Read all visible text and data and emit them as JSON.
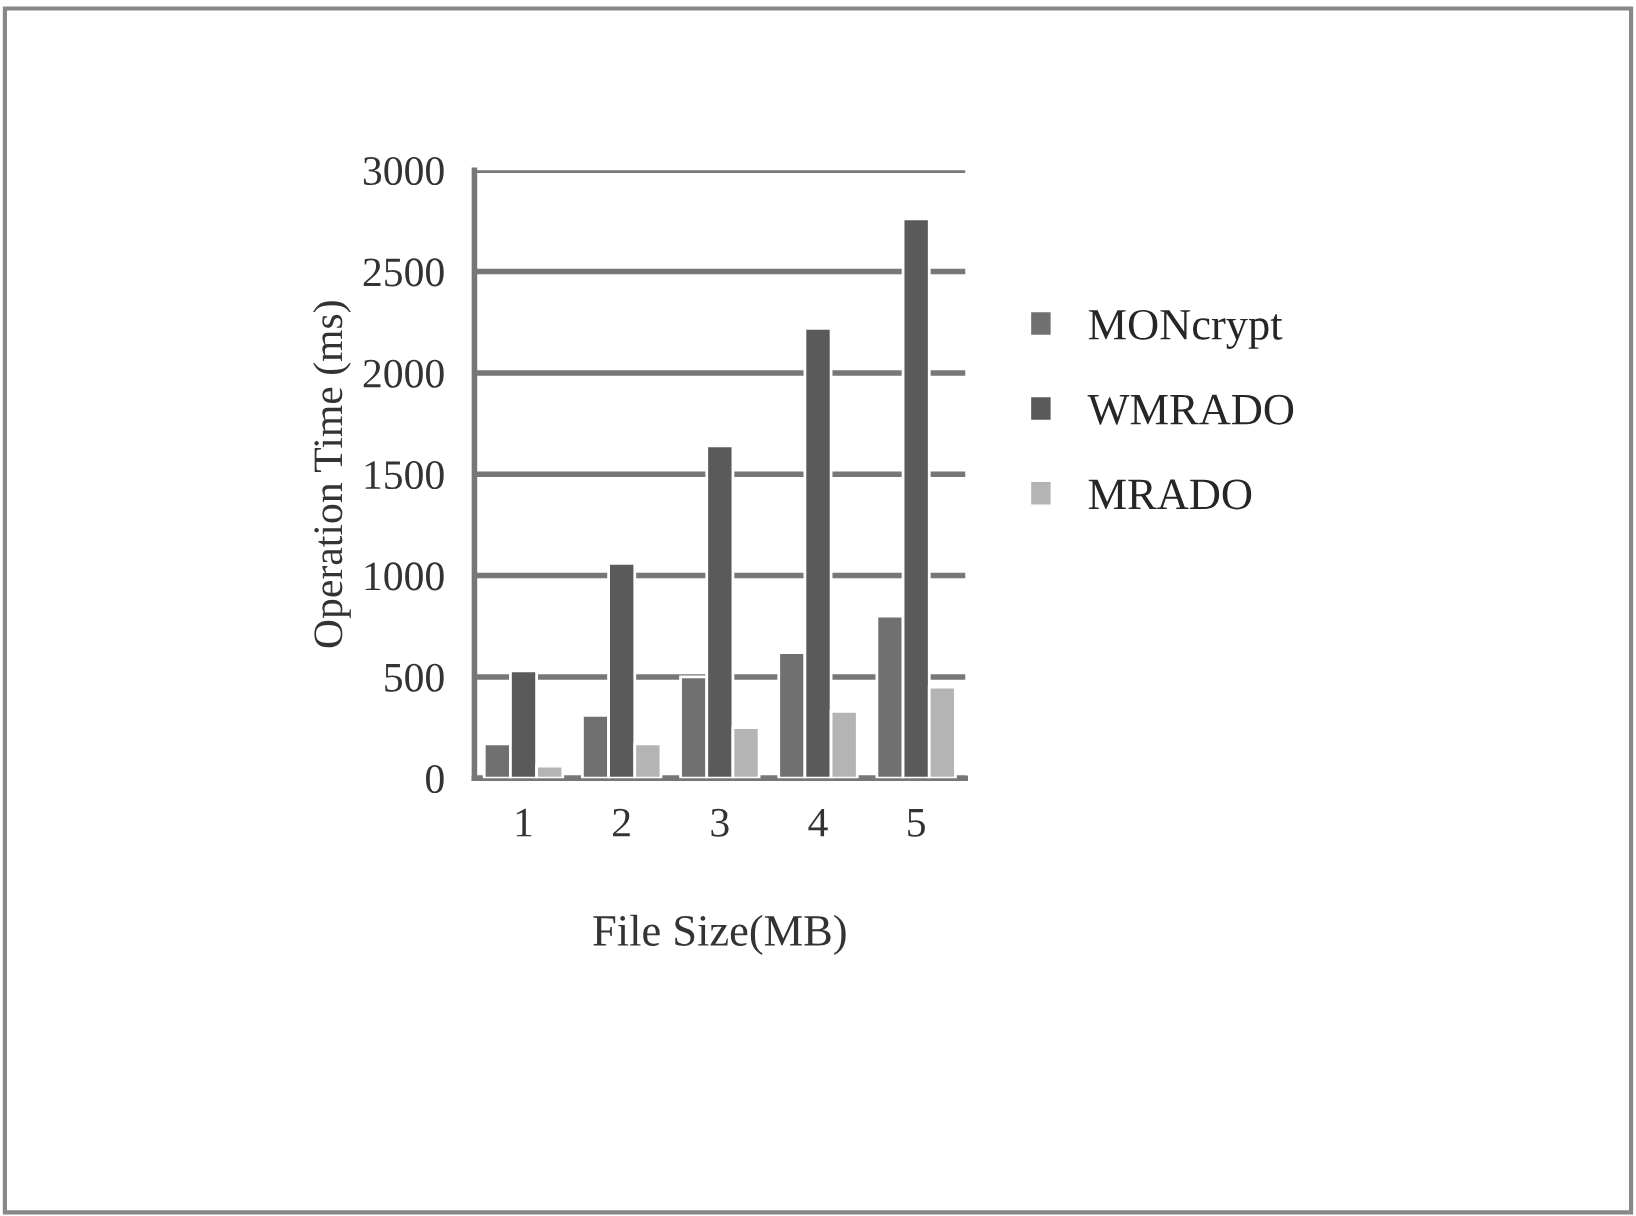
{
  "chart_data": {
    "type": "bar",
    "xlabel": "File Size(MB)",
    "ylabel": "Operation Time (ms)",
    "categories": [
      "1",
      "2",
      "3",
      "4",
      "5"
    ],
    "series": [
      {
        "name": "MONcrypt",
        "color": "#707070",
        "values": [
          170,
          310,
          500,
          620,
          800
        ]
      },
      {
        "name": "WMRADO",
        "color": "#5a5a5a",
        "values": [
          530,
          1060,
          1640,
          2220,
          2760
        ]
      },
      {
        "name": "MRADO",
        "color": "#b4b4b4",
        "values": [
          60,
          170,
          250,
          330,
          450
        ]
      }
    ],
    "ylim": [
      0,
      3000
    ],
    "yticks": [
      0,
      500,
      1000,
      1500,
      2000,
      2500,
      3000
    ],
    "grid": "y",
    "legend": "right"
  }
}
